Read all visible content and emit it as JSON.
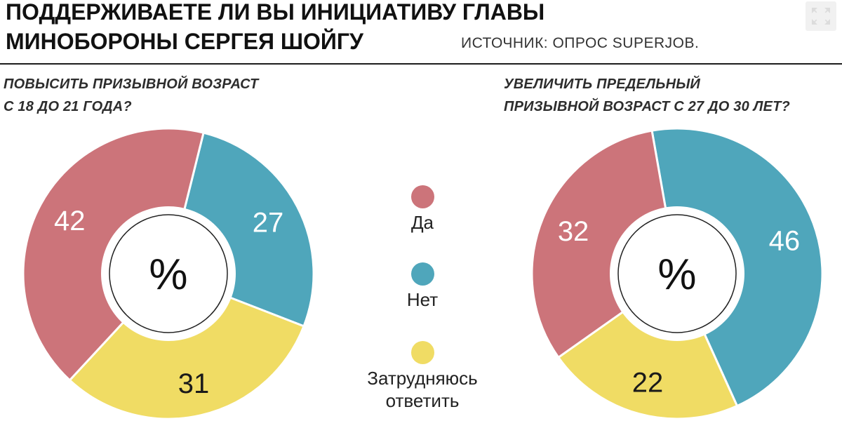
{
  "header": {
    "title_line1": "ПОДДЕРЖИВАЕТЕ ЛИ ВЫ ИНИЦИАТИВУ ГЛАВЫ",
    "title_line2": "МИНОБОРОНЫ СЕРГЕЯ ШОЙГУ",
    "source": "ИСТОЧНИК: ОПРОС SUPERJOB."
  },
  "icons": {
    "expand": "fullscreen-expand-icon"
  },
  "colors": {
    "yes": "#CC747A",
    "no": "#4FA6BB",
    "undecided": "#F0DC64",
    "slice_label_light": "#FFFFFF",
    "slice_label_dark": "#1A1A1A",
    "divider": "#1C1C1C",
    "hole_ring_stroke": "#222222"
  },
  "legend": [
    {
      "label": "Да",
      "color": "#CC747A"
    },
    {
      "label": "Нет",
      "color": "#4FA6BB"
    },
    {
      "label": "Затрудняюсь ответить",
      "color": "#F0DC64"
    }
  ],
  "chart_data": [
    {
      "type": "pie",
      "style": "donut",
      "question": [
        "ПОВЫСИТЬ ПРИЗЫВНОЙ ВОЗРАСТ",
        "С 18 ДО 21 ГОДА?"
      ],
      "unit": "%",
      "center_label": "%",
      "categories": [
        "Да",
        "Нет",
        "Затрудняюсь ответить"
      ],
      "values": [
        42,
        27,
        31
      ],
      "start_angle_deg": 14,
      "slices": [
        {
          "label": "Нет",
          "value": 27,
          "color": "#4FA6BB",
          "text_color": "#FFFFFF"
        },
        {
          "label": "Затрудняюсь ответить",
          "value": 31,
          "color": "#F0DC64",
          "text_color": "#1A1A1A"
        },
        {
          "label": "Да",
          "value": 42,
          "color": "#CC747A",
          "text_color": "#FFFFFF"
        }
      ]
    },
    {
      "type": "pie",
      "style": "donut",
      "question": [
        "УВЕЛИЧИТЬ ПРЕДЕЛЬНЫЙ",
        "ПРИЗЫВНОЙ ВОЗРАСТ С 27 ДО 30 ЛЕТ?"
      ],
      "unit": "%",
      "center_label": "%",
      "categories": [
        "Да",
        "Нет",
        "Затрудняюсь ответить"
      ],
      "values": [
        32,
        46,
        22
      ],
      "start_angle_deg": -10,
      "slices": [
        {
          "label": "Нет",
          "value": 46,
          "color": "#4FA6BB",
          "text_color": "#FFFFFF"
        },
        {
          "label": "Затрудняюсь ответить",
          "value": 22,
          "color": "#F0DC64",
          "text_color": "#1A1A1A"
        },
        {
          "label": "Да",
          "value": 32,
          "color": "#CC747A",
          "text_color": "#FFFFFF"
        }
      ]
    }
  ]
}
